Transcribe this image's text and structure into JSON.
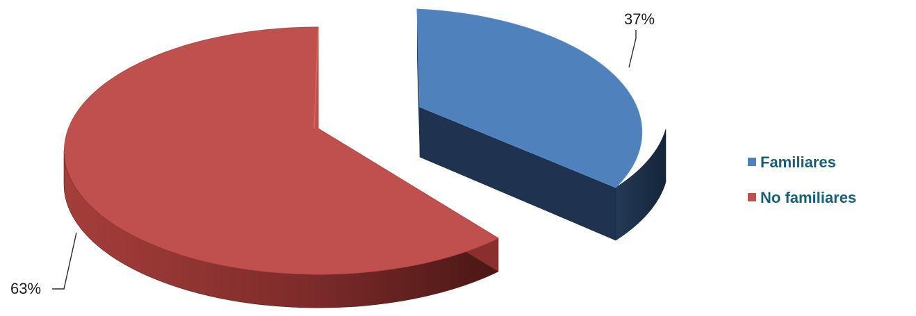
{
  "chart_data": {
    "type": "pie",
    "variant": "3d-exploded",
    "title": "",
    "slices": [
      {
        "label": "Familiares",
        "value": 37,
        "data_label": "37%",
        "color": "#4F81BD",
        "side_color": "#1F3350",
        "exploded": true
      },
      {
        "label": "No familiares",
        "value": 63,
        "data_label": "63%",
        "color": "#C0504D",
        "side_color": "#6B2220",
        "exploded": false
      }
    ],
    "legend": {
      "position": "right",
      "text_color": "#17607A",
      "entries": [
        "Familiares",
        "No familiares"
      ]
    }
  }
}
